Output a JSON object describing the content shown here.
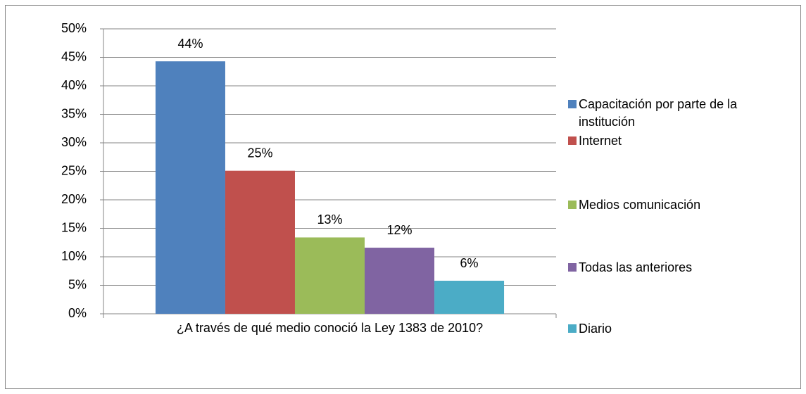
{
  "chart_data": {
    "type": "bar",
    "categories": [
      "¿A través de qué medio conoció la Ley 1383 de 2010?"
    ],
    "series": [
      {
        "name": "Capacitación por parte de la institución",
        "color": "#4f81bd",
        "values": [
          44.3
        ],
        "value_labels": [
          "44%"
        ]
      },
      {
        "name": "Internet",
        "color": "#c0504d",
        "values": [
          25.1
        ],
        "value_labels": [
          "25%"
        ]
      },
      {
        "name": "Medios comunicación",
        "color": "#9bbb59",
        "values": [
          13.4
        ],
        "value_labels": [
          "13%"
        ]
      },
      {
        "name": "Todas las anteriores",
        "color": "#8064a2",
        "values": [
          11.6
        ],
        "value_labels": [
          "12%"
        ]
      },
      {
        "name": "Diario",
        "color": "#4bacc6",
        "values": [
          5.8
        ],
        "value_labels": [
          "6%"
        ]
      }
    ],
    "ylim": [
      0,
      50
    ],
    "yticks": [
      {
        "value": 0,
        "label": "0%"
      },
      {
        "value": 5,
        "label": "5%"
      },
      {
        "value": 10,
        "label": "10%"
      },
      {
        "value": 15,
        "label": "15%"
      },
      {
        "value": 20,
        "label": "20%"
      },
      {
        "value": 25,
        "label": "25%"
      },
      {
        "value": 30,
        "label": "30%"
      },
      {
        "value": 35,
        "label": "35%"
      },
      {
        "value": 40,
        "label": "40%"
      },
      {
        "value": 45,
        "label": "45%"
      },
      {
        "value": 50,
        "label": "50%"
      }
    ],
    "grid": true,
    "legend": "right"
  }
}
